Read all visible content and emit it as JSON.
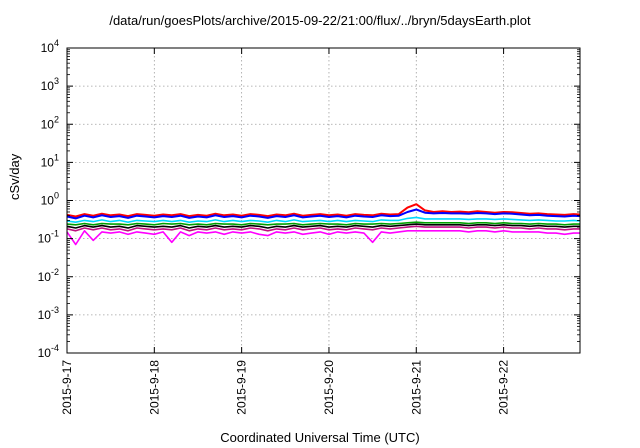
{
  "chart_data": {
    "type": "line",
    "title": "/data/run/goesPlots/archive/2015-09-22/21:00/flux/../bryn/5daysEarth.plot",
    "xlabel": "Coordinated Universal Time (UTC)",
    "ylabel": "cSv/day",
    "yscale": "log",
    "ylim": [
      0.0001,
      10000
    ],
    "y_ticks": [
      {
        "base": "10",
        "exp": "-4",
        "value": 0.0001
      },
      {
        "base": "10",
        "exp": "-3",
        "value": 0.001
      },
      {
        "base": "10",
        "exp": "-2",
        "value": 0.01
      },
      {
        "base": "10",
        "exp": "-1",
        "value": 0.1
      },
      {
        "base": "10",
        "exp": "0",
        "value": 1
      },
      {
        "base": "10",
        "exp": "1",
        "value": 10
      },
      {
        "base": "10",
        "exp": "2",
        "value": 100
      },
      {
        "base": "10",
        "exp": "3",
        "value": 1000
      },
      {
        "base": "10",
        "exp": "4",
        "value": 10000
      }
    ],
    "x_ticks": [
      "2015-9-17",
      "2015-9-18",
      "2015-9-19",
      "2015-9-20",
      "2015-9-21",
      "2015-9-22"
    ],
    "xlim": [
      "2015-09-17 00:00",
      "2015-09-22 21:00"
    ],
    "grid": true,
    "series_days": [
      0,
      0.1,
      0.2,
      0.3,
      0.4,
      0.5,
      0.6,
      0.7,
      0.8,
      0.9,
      1.0,
      1.1,
      1.2,
      1.3,
      1.4,
      1.5,
      1.6,
      1.7,
      1.8,
      1.9,
      2.0,
      2.1,
      2.2,
      2.3,
      2.4,
      2.5,
      2.6,
      2.7,
      2.8,
      2.9,
      3.0,
      3.1,
      3.2,
      3.3,
      3.4,
      3.5,
      3.6,
      3.7,
      3.8,
      3.9,
      4.0,
      4.1,
      4.2,
      4.3,
      4.4,
      4.5,
      4.6,
      4.7,
      4.8,
      4.9,
      5.0,
      5.1,
      5.2,
      5.3,
      5.4,
      5.5,
      5.6,
      5.7,
      5.8,
      5.875
    ],
    "series": [
      {
        "color": "#ff0000",
        "values": [
          0.42,
          0.38,
          0.44,
          0.4,
          0.45,
          0.41,
          0.43,
          0.39,
          0.44,
          0.42,
          0.4,
          0.43,
          0.41,
          0.44,
          0.39,
          0.42,
          0.4,
          0.45,
          0.41,
          0.43,
          0.4,
          0.44,
          0.42,
          0.39,
          0.43,
          0.41,
          0.45,
          0.4,
          0.42,
          0.44,
          0.41,
          0.43,
          0.4,
          0.44,
          0.42,
          0.41,
          0.45,
          0.43,
          0.44,
          0.65,
          0.8,
          0.55,
          0.5,
          0.52,
          0.5,
          0.51,
          0.49,
          0.52,
          0.5,
          0.48,
          0.5,
          0.49,
          0.47,
          0.45,
          0.46,
          0.44,
          0.43,
          0.42,
          0.44,
          0.43
        ]
      },
      {
        "color": "#0000ff",
        "values": [
          0.38,
          0.34,
          0.4,
          0.36,
          0.41,
          0.37,
          0.39,
          0.35,
          0.4,
          0.38,
          0.36,
          0.39,
          0.37,
          0.4,
          0.35,
          0.38,
          0.36,
          0.41,
          0.37,
          0.39,
          0.36,
          0.4,
          0.38,
          0.35,
          0.39,
          0.37,
          0.41,
          0.36,
          0.38,
          0.4,
          0.37,
          0.39,
          0.36,
          0.4,
          0.38,
          0.37,
          0.41,
          0.39,
          0.4,
          0.5,
          0.58,
          0.48,
          0.46,
          0.47,
          0.46,
          0.46,
          0.45,
          0.47,
          0.46,
          0.44,
          0.46,
          0.45,
          0.43,
          0.41,
          0.42,
          0.4,
          0.39,
          0.38,
          0.4,
          0.39
        ]
      },
      {
        "color": "#00d8ff",
        "values": [
          0.29,
          0.27,
          0.3,
          0.28,
          0.31,
          0.28,
          0.3,
          0.27,
          0.3,
          0.29,
          0.28,
          0.3,
          0.28,
          0.3,
          0.27,
          0.29,
          0.28,
          0.31,
          0.28,
          0.3,
          0.28,
          0.3,
          0.29,
          0.27,
          0.3,
          0.28,
          0.31,
          0.28,
          0.29,
          0.3,
          0.28,
          0.3,
          0.28,
          0.3,
          0.29,
          0.28,
          0.31,
          0.3,
          0.3,
          0.34,
          0.36,
          0.33,
          0.33,
          0.33,
          0.33,
          0.33,
          0.32,
          0.33,
          0.33,
          0.32,
          0.33,
          0.32,
          0.31,
          0.3,
          0.31,
          0.3,
          0.29,
          0.29,
          0.3,
          0.29
        ]
      },
      {
        "color": "#00a000",
        "values": [
          0.24,
          0.23,
          0.25,
          0.23,
          0.25,
          0.24,
          0.24,
          0.23,
          0.25,
          0.24,
          0.23,
          0.25,
          0.24,
          0.25,
          0.23,
          0.24,
          0.23,
          0.25,
          0.24,
          0.24,
          0.23,
          0.25,
          0.24,
          0.23,
          0.24,
          0.24,
          0.25,
          0.23,
          0.24,
          0.25,
          0.24,
          0.24,
          0.23,
          0.25,
          0.24,
          0.24,
          0.25,
          0.24,
          0.25,
          0.26,
          0.27,
          0.26,
          0.26,
          0.26,
          0.26,
          0.26,
          0.25,
          0.26,
          0.26,
          0.25,
          0.26,
          0.25,
          0.25,
          0.24,
          0.25,
          0.24,
          0.24,
          0.23,
          0.24,
          0.24
        ]
      },
      {
        "color": "#000000",
        "values": [
          0.21,
          0.19,
          0.22,
          0.2,
          0.22,
          0.2,
          0.21,
          0.19,
          0.22,
          0.21,
          0.2,
          0.21,
          0.2,
          0.22,
          0.19,
          0.21,
          0.2,
          0.22,
          0.2,
          0.21,
          0.2,
          0.22,
          0.21,
          0.19,
          0.21,
          0.2,
          0.22,
          0.2,
          0.21,
          0.22,
          0.2,
          0.21,
          0.2,
          0.22,
          0.21,
          0.2,
          0.22,
          0.21,
          0.22,
          0.23,
          0.24,
          0.23,
          0.23,
          0.23,
          0.23,
          0.23,
          0.22,
          0.23,
          0.23,
          0.22,
          0.23,
          0.22,
          0.22,
          0.21,
          0.22,
          0.21,
          0.21,
          0.2,
          0.21,
          0.21
        ]
      },
      {
        "color": "#c01080",
        "values": [
          0.18,
          0.16,
          0.19,
          0.17,
          0.19,
          0.17,
          0.18,
          0.16,
          0.19,
          0.18,
          0.17,
          0.18,
          0.17,
          0.19,
          0.16,
          0.18,
          0.17,
          0.19,
          0.17,
          0.18,
          0.17,
          0.19,
          0.18,
          0.16,
          0.18,
          0.17,
          0.19,
          0.17,
          0.18,
          0.19,
          0.17,
          0.18,
          0.17,
          0.19,
          0.18,
          0.17,
          0.19,
          0.18,
          0.19,
          0.2,
          0.21,
          0.2,
          0.2,
          0.2,
          0.2,
          0.2,
          0.19,
          0.2,
          0.2,
          0.19,
          0.2,
          0.19,
          0.19,
          0.18,
          0.19,
          0.18,
          0.18,
          0.17,
          0.18,
          0.18
        ]
      },
      {
        "color": "#ff00ff",
        "values": [
          0.15,
          0.07,
          0.16,
          0.09,
          0.15,
          0.14,
          0.15,
          0.13,
          0.15,
          0.14,
          0.13,
          0.15,
          0.08,
          0.15,
          0.12,
          0.15,
          0.14,
          0.15,
          0.13,
          0.15,
          0.14,
          0.15,
          0.13,
          0.12,
          0.15,
          0.14,
          0.15,
          0.13,
          0.14,
          0.15,
          0.13,
          0.15,
          0.14,
          0.15,
          0.14,
          0.08,
          0.15,
          0.14,
          0.15,
          0.16,
          0.16,
          0.16,
          0.16,
          0.16,
          0.16,
          0.16,
          0.15,
          0.16,
          0.16,
          0.15,
          0.16,
          0.15,
          0.15,
          0.15,
          0.15,
          0.14,
          0.14,
          0.13,
          0.14,
          0.14
        ]
      }
    ]
  }
}
